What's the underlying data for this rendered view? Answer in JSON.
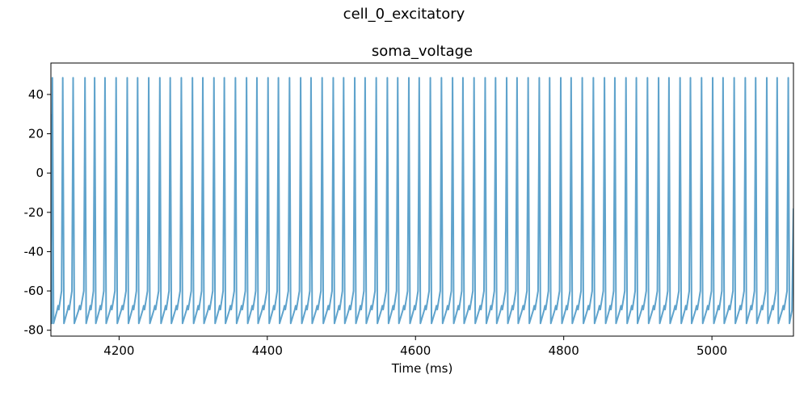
{
  "chart_data": {
    "type": "line",
    "suptitle": "cell_0_excitatory",
    "title": "soma_voltage",
    "xlabel": "Time (ms)",
    "ylabel": "",
    "xlim": [
      4108,
      5110
    ],
    "ylim": [
      -83,
      56
    ],
    "xticks": [
      4200,
      4400,
      4600,
      4800,
      5000
    ],
    "yticks": [
      -80,
      -60,
      -40,
      -20,
      0,
      20,
      40
    ],
    "grid": false,
    "legend": "none",
    "series": [
      {
        "name": "soma_voltage",
        "color": "#5fa3cc",
        "rest_mV": -76.5,
        "peak_mV": 48.5,
        "mid_isi_mV": -69,
        "pre_spike_mV": -60,
        "spike_times_ms": [
          4110,
          4124,
          4138,
          4154,
          4167,
          4181,
          4196,
          4211,
          4225,
          4240,
          4255,
          4269,
          4284,
          4299,
          4313,
          4328,
          4342,
          4357,
          4372,
          4386,
          4401,
          4415,
          4430,
          4445,
          4459,
          4474,
          4489,
          4503,
          4518,
          4532,
          4547,
          4562,
          4576,
          4591,
          4605,
          4620,
          4635,
          4650,
          4664,
          4679,
          4694,
          4708,
          4723,
          4737,
          4752,
          4767,
          4781,
          4796,
          4810,
          4825,
          4840,
          4855,
          4869,
          4884,
          4898,
          4913,
          4928,
          4942,
          4957,
          4971,
          4986,
          5001,
          5015,
          5030,
          5045,
          5059,
          5074,
          5088,
          5103
        ]
      }
    ]
  }
}
